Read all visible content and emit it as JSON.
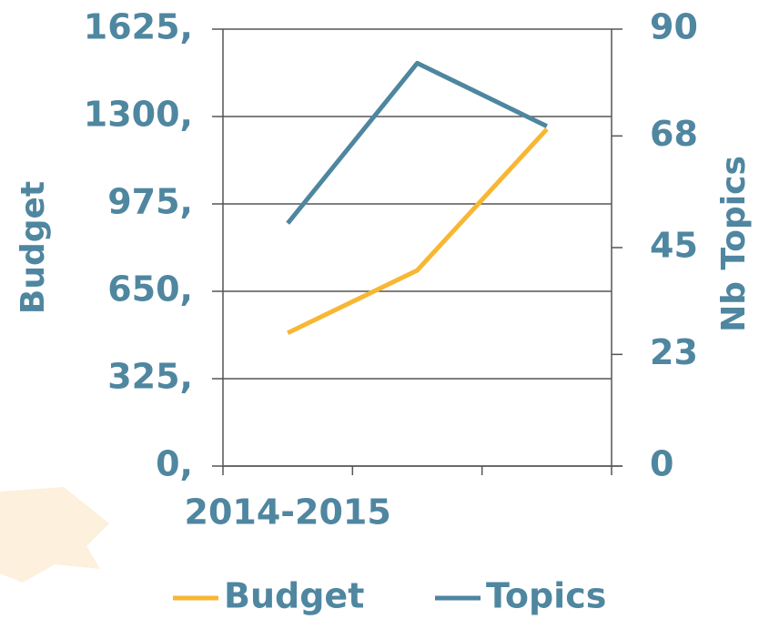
{
  "chart_data": {
    "type": "line",
    "categories": [
      "2014-2015",
      null,
      null
    ],
    "series": [
      {
        "name": "Budget",
        "color": "#f7b733",
        "values": [
          495,
          728,
          1253
        ]
      },
      {
        "name": "Topics",
        "color": "#4e86a0",
        "axis": "y2",
        "values": [
          50,
          83,
          70
        ]
      }
    ],
    "ylabel": "Budget",
    "y2label": "Nb Topics",
    "ylim": [
      0,
      1625
    ],
    "yticks": [
      {
        "value": 0,
        "label": "0,"
      },
      {
        "value": 325,
        "label": "325,"
      },
      {
        "value": 650,
        "label": "650,"
      },
      {
        "value": 975,
        "label": "975,"
      },
      {
        "value": 1300,
        "label": "1300,"
      },
      {
        "value": 1625,
        "label": "1625,"
      }
    ],
    "y2lim": [
      0,
      90
    ],
    "y2ticks": [
      0,
      23,
      45,
      68,
      90
    ],
    "grid": true,
    "legend": "bottom"
  }
}
